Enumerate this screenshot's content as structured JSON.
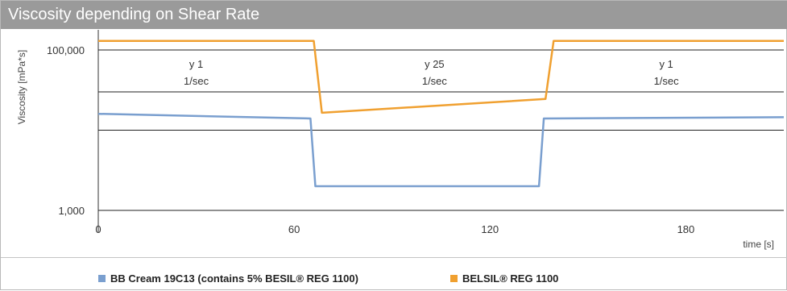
{
  "chart_data": {
    "type": "line",
    "title": "Viscosity depending on Shear Rate",
    "xlabel": "time [s]",
    "ylabel": "Viscosity [mPa*s]",
    "x_ticks": [
      0,
      60,
      120,
      180
    ],
    "y_ticks": [
      1000,
      100000
    ],
    "y_tick_labels": [
      "1,000",
      "100,000"
    ],
    "xlim": [
      0,
      210
    ],
    "ylim_log": [
      1000,
      200000
    ],
    "y_scale": "log",
    "grid": "horizontal lines",
    "annotations": [
      {
        "text": "y 1",
        "subtext": "1/sec",
        "x": 30
      },
      {
        "text": "y 25",
        "subtext": "1/sec",
        "x": 103
      },
      {
        "text": "y 1",
        "subtext": "1/sec",
        "x": 174
      }
    ],
    "legend_position": "bottom",
    "series": [
      {
        "name": "BB Cream 19C13 (contains 5% BESIL® REG 1100)",
        "color": "#7a9fcf",
        "points": [
          [
            0,
            16000
          ],
          [
            65,
            14000
          ],
          [
            66.5,
            2000
          ],
          [
            135,
            2000
          ],
          [
            136.5,
            14000
          ],
          [
            210,
            14500
          ]
        ]
      },
      {
        "name": "BELSIL® REG 1100",
        "color": "#f0a030",
        "points": [
          [
            0,
            130000
          ],
          [
            66,
            130000
          ],
          [
            68.5,
            16500
          ],
          [
            137,
            24500
          ],
          [
            139.5,
            130000
          ],
          [
            210,
            130000
          ]
        ]
      }
    ]
  }
}
